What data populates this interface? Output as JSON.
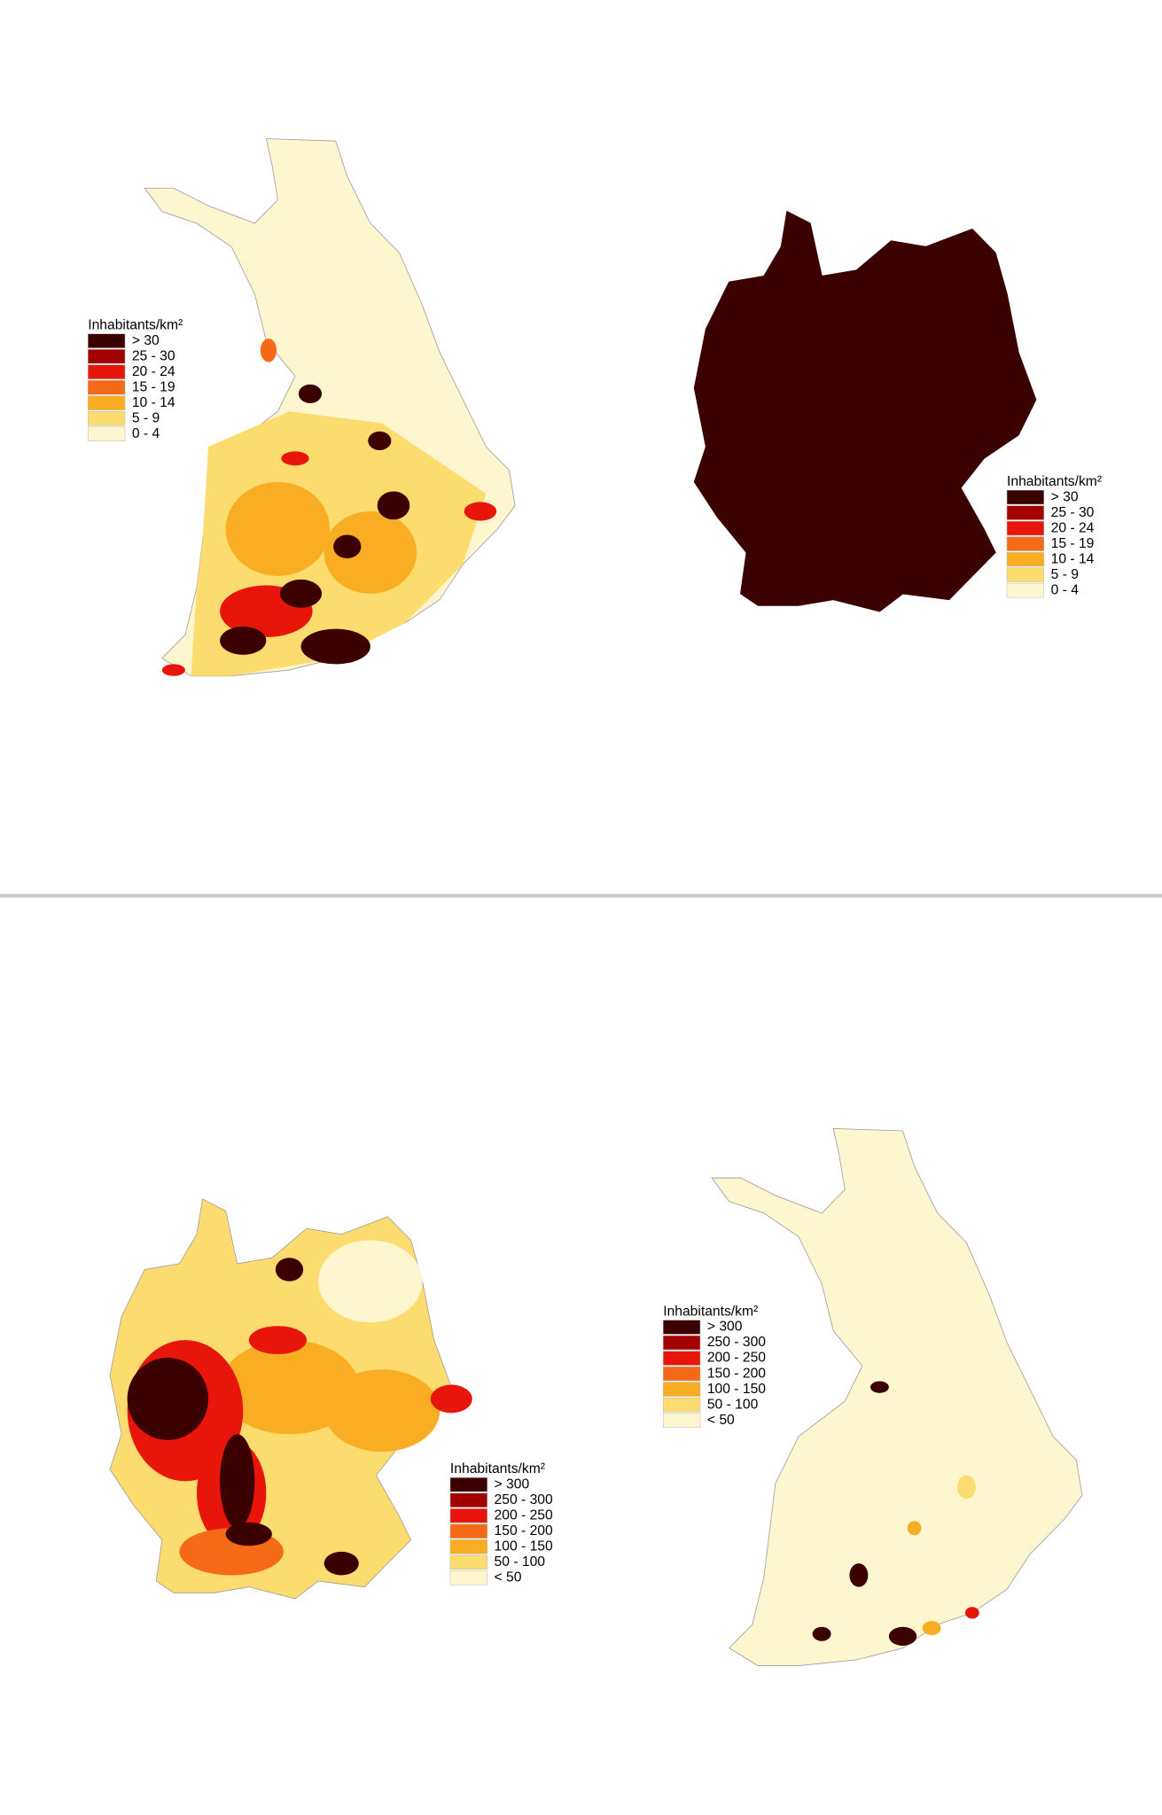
{
  "maps": [
    {
      "legend": {
        "title": "Inhabitants/km²",
        "items": [
          {
            "label": "> 30",
            "color": "#3b0000"
          },
          {
            "label": "25 - 30",
            "color": "#a30000"
          },
          {
            "label": "20 - 24",
            "color": "#e8150b"
          },
          {
            "label": "15 - 19",
            "color": "#f56a16"
          },
          {
            "label": "10 - 14",
            "color": "#f9ad22"
          },
          {
            "label": "5 - 9",
            "color": "#fcdc6e"
          },
          {
            "label": "0 - 4",
            "color": "#fdf6cf"
          }
        ]
      }
    },
    {
      "legend": {
        "title": "Inhabitants/km²",
        "items": [
          {
            "label": "> 30",
            "color": "#3b0000"
          },
          {
            "label": "25 - 30",
            "color": "#a30000"
          },
          {
            "label": "20 - 24",
            "color": "#e8150b"
          },
          {
            "label": "15 - 19",
            "color": "#f56a16"
          },
          {
            "label": "10 - 14",
            "color": "#f9ad22"
          },
          {
            "label": "5 - 9",
            "color": "#fcdc6e"
          },
          {
            "label": "0 - 4",
            "color": "#fdf6cf"
          }
        ]
      }
    },
    {
      "legend": {
        "title": "Inhabitants/km²",
        "items": [
          {
            "label": "> 300",
            "color": "#3b0000"
          },
          {
            "label": "250 - 300",
            "color": "#a30000"
          },
          {
            "label": "200 - 250",
            "color": "#e8150b"
          },
          {
            "label": "150 - 200",
            "color": "#f56a16"
          },
          {
            "label": "100 - 150",
            "color": "#f9ad22"
          },
          {
            "label": "50 - 100",
            "color": "#fcdc6e"
          },
          {
            "label": "< 50",
            "color": "#fdf6cf"
          }
        ]
      }
    },
    {
      "legend": {
        "title": "Inhabitants/km²",
        "items": [
          {
            "label": "> 300",
            "color": "#3b0000"
          },
          {
            "label": "250 - 300",
            "color": "#a30000"
          },
          {
            "label": "200 - 250",
            "color": "#e8150b"
          },
          {
            "label": "150 - 200",
            "color": "#f56a16"
          },
          {
            "label": "100 - 150",
            "color": "#f9ad22"
          },
          {
            "label": "50 - 100",
            "color": "#fcdc6e"
          },
          {
            "label": "< 50",
            "color": "#fdf6cf"
          }
        ]
      }
    }
  ]
}
